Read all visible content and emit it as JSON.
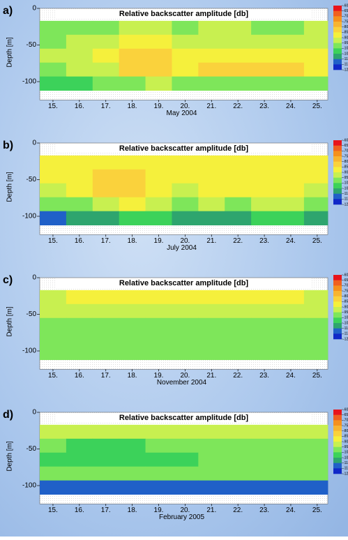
{
  "chart_data": [
    {
      "type": "heatmap",
      "label": "a)",
      "title": "Relative backscatter amplitude [db]",
      "ylabel": "Depth [m]",
      "xlabel": "May 2004",
      "x": [
        15,
        16,
        17,
        18,
        19,
        20,
        21,
        22,
        23,
        24,
        25
      ],
      "y": [
        -26.5,
        -45.5,
        -64.5,
        -83.5,
        -102.5
      ],
      "values": [
        [
          -97,
          -97,
          -96,
          -95,
          -93,
          -96,
          -95,
          -95,
          -96,
          -96,
          -94
        ],
        [
          -96,
          -95,
          -94,
          -90,
          -88,
          -94,
          -93,
          -92,
          -93,
          -94,
          -92
        ],
        [
          -95,
          -93,
          -90,
          -85,
          -82,
          -90,
          -88,
          -86,
          -88,
          -87,
          -88
        ],
        [
          -97,
          -95,
          -92,
          -82,
          -84,
          -86,
          -84,
          -83,
          -84,
          -85,
          -88
        ],
        [
          -104,
          -103,
          -100,
          -96,
          -95,
          -98,
          -96,
          -96,
          -97,
          -100,
          -96
        ]
      ],
      "xlim": [
        14.5,
        25.4
      ],
      "ylim": [
        -125,
        0
      ],
      "xticks": [
        {
          "value": 15,
          "label": "15."
        },
        {
          "value": 16,
          "label": "16."
        },
        {
          "value": 17,
          "label": "17."
        },
        {
          "value": 18,
          "label": "18."
        },
        {
          "value": 19,
          "label": "19."
        },
        {
          "value": 20,
          "label": "20."
        },
        {
          "value": 21,
          "label": "21."
        },
        {
          "value": 22,
          "label": "22."
        },
        {
          "value": 23,
          "label": "23."
        },
        {
          "value": 24,
          "label": "24."
        },
        {
          "value": 25,
          "label": "25."
        }
      ],
      "yticks": [
        0,
        -50,
        -100
      ],
      "colorbar": {
        "ticks": [
          -60,
          -65,
          -70,
          -75,
          -80,
          -85,
          -90,
          -95,
          -100,
          -105,
          -110,
          -115,
          -120
        ],
        "colors": [
          "#e8141c",
          "#f06020",
          "#f5901e",
          "#f8b430",
          "#fad23c",
          "#f5f03c",
          "#c8f050",
          "#7ee65a",
          "#3cd25a",
          "#2ea56e",
          "#2060c8",
          "#1028c8"
        ]
      }
    },
    {
      "type": "heatmap",
      "label": "b)",
      "title": "Relative backscatter amplitude [db]",
      "ylabel": "Depth [m]",
      "xlabel": "July 2004",
      "x": [
        15,
        16,
        17,
        18,
        19,
        20,
        21,
        22,
        23,
        24,
        25
      ],
      "y": [
        -26.5,
        -45.5,
        -64.5,
        -83.5,
        -102.5
      ],
      "values": [
        [
          -88,
          -86,
          -86,
          -88,
          -87,
          -90,
          -88,
          -88,
          -90,
          -88,
          -90
        ],
        [
          -90,
          -86,
          -84,
          -85,
          -86,
          -90,
          -86,
          -87,
          -88,
          -87,
          -90
        ],
        [
          -94,
          -88,
          -84,
          -84,
          -86,
          -91,
          -87,
          -88,
          -86,
          -88,
          -92
        ],
        [
          -100,
          -96,
          -94,
          -88,
          -93,
          -97,
          -94,
          -96,
          -94,
          -92,
          -96
        ],
        [
          -112,
          -108,
          -106,
          -104,
          -105,
          -107,
          -106,
          -106,
          -105,
          -104,
          -107
        ]
      ],
      "xlim": [
        14.5,
        25.4
      ],
      "ylim": [
        -125,
        0
      ],
      "xticks": [
        {
          "value": 15,
          "label": "15."
        },
        {
          "value": 16,
          "label": "16."
        },
        {
          "value": 17,
          "label": "17."
        },
        {
          "value": 18,
          "label": "18."
        },
        {
          "value": 19,
          "label": "19."
        },
        {
          "value": 20,
          "label": "20."
        },
        {
          "value": 21,
          "label": "21."
        },
        {
          "value": 22,
          "label": "22."
        },
        {
          "value": 23,
          "label": "23."
        },
        {
          "value": 24,
          "label": "24."
        },
        {
          "value": 25,
          "label": "25."
        }
      ],
      "yticks": [
        0,
        -50,
        -100
      ],
      "colorbar": {
        "ticks": [
          -60,
          -65,
          -70,
          -75,
          -80,
          -85,
          -90,
          -95,
          -100,
          -105,
          -110,
          -115,
          -120
        ],
        "colors": [
          "#e8141c",
          "#f06020",
          "#f5901e",
          "#f8b430",
          "#fad23c",
          "#f5f03c",
          "#c8f050",
          "#7ee65a",
          "#3cd25a",
          "#2ea56e",
          "#2060c8",
          "#1028c8"
        ]
      }
    },
    {
      "type": "heatmap",
      "label": "c)",
      "title": "Relative backscatter amplitude [db]",
      "ylabel": "Depth [m]",
      "xlabel": "November 2004",
      "x": [
        15,
        16,
        17,
        18,
        19,
        20,
        21,
        22,
        23,
        24,
        25
      ],
      "y": [
        -26.5,
        -45.5,
        -64.5,
        -83.5,
        -102.5
      ],
      "values": [
        [
          -91,
          -90,
          -90,
          -90,
          -89,
          -90,
          -90,
          -89,
          -90,
          -89,
          -91
        ],
        [
          -94,
          -93,
          -94,
          -93,
          -93,
          -94,
          -93,
          -92,
          -93,
          -93,
          -94
        ],
        [
          -96,
          -97,
          -96,
          -97,
          -96,
          -97,
          -96,
          -96,
          -97,
          -96,
          -96
        ],
        [
          -97,
          -98,
          -97,
          -97,
          -96,
          -97,
          -96,
          -96,
          -97,
          -97,
          -97
        ],
        [
          -98,
          -98,
          -97,
          -98,
          -97,
          -98,
          -97,
          -97,
          -97,
          -98,
          -98
        ]
      ],
      "xlim": [
        14.5,
        25.4
      ],
      "ylim": [
        -125,
        0
      ],
      "xticks": [
        {
          "value": 15,
          "label": "15."
        },
        {
          "value": 16,
          "label": "16."
        },
        {
          "value": 17,
          "label": "17."
        },
        {
          "value": 18,
          "label": "18."
        },
        {
          "value": 19,
          "label": "19."
        },
        {
          "value": 20,
          "label": "20."
        },
        {
          "value": 21,
          "label": "21."
        },
        {
          "value": 22,
          "label": "22."
        },
        {
          "value": 23,
          "label": "23."
        },
        {
          "value": 24,
          "label": "24."
        },
        {
          "value": 25,
          "label": "25."
        }
      ],
      "yticks": [
        0,
        -50,
        -100
      ],
      "colorbar": {
        "ticks": [
          -60,
          -65,
          -70,
          -75,
          -80,
          -85,
          -90,
          -95,
          -100,
          -105,
          -110,
          -115,
          -120
        ],
        "colors": [
          "#e8141c",
          "#f06020",
          "#f5901e",
          "#f8b430",
          "#fad23c",
          "#f5f03c",
          "#c8f050",
          "#7ee65a",
          "#3cd25a",
          "#2ea56e",
          "#2060c8",
          "#1028c8"
        ]
      }
    },
    {
      "type": "heatmap",
      "label": "d)",
      "title": "Relative backscatter amplitude [db]",
      "ylabel": "Depth [m]",
      "xlabel": "February 2005",
      "x": [
        15,
        16,
        17,
        18,
        19,
        20,
        21,
        22,
        23,
        24,
        25
      ],
      "y": [
        -26.5,
        -45.5,
        -64.5,
        -83.5,
        -102.5
      ],
      "values": [
        [
          -95,
          -94,
          -94,
          -95,
          -94,
          -94,
          -95,
          -94,
          -93,
          -93,
          -94
        ],
        [
          -100,
          -101,
          -102,
          -101,
          -100,
          -100,
          -98,
          -99,
          -98,
          -97,
          -96
        ],
        [
          -101,
          -102,
          -101,
          -102,
          -102,
          -101,
          -100,
          -100,
          -99,
          -98,
          -97
        ],
        [
          -98,
          -98,
          -99,
          -99,
          -98,
          -99,
          -99,
          -98,
          -98,
          -97,
          -97
        ],
        [
          -112,
          -112,
          -113,
          -113,
          -114,
          -112,
          -113,
          -113,
          -114,
          -113,
          -113
        ]
      ],
      "xlim": [
        14.5,
        25.4
      ],
      "ylim": [
        -125,
        0
      ],
      "xticks": [
        {
          "value": 15,
          "label": "15."
        },
        {
          "value": 16,
          "label": "16."
        },
        {
          "value": 17,
          "label": "17."
        },
        {
          "value": 18,
          "label": "18."
        },
        {
          "value": 19,
          "label": "19."
        },
        {
          "value": 20,
          "label": "20."
        },
        {
          "value": 21,
          "label": "21."
        },
        {
          "value": 22,
          "label": "22."
        },
        {
          "value": 23,
          "label": "23."
        },
        {
          "value": 24,
          "label": "24."
        },
        {
          "value": 25,
          "label": "25."
        }
      ],
      "yticks": [
        0,
        -50,
        -100
      ],
      "colorbar": {
        "ticks": [
          -60,
          -65,
          -70,
          -75,
          -80,
          -85,
          -90,
          -95,
          -100,
          -105,
          -110,
          -115,
          -120
        ],
        "colors": [
          "#e8141c",
          "#f06020",
          "#f5901e",
          "#f8b430",
          "#fad23c",
          "#f5f03c",
          "#c8f050",
          "#7ee65a",
          "#3cd25a",
          "#2ea56e",
          "#2060c8",
          "#1028c8"
        ]
      }
    }
  ]
}
